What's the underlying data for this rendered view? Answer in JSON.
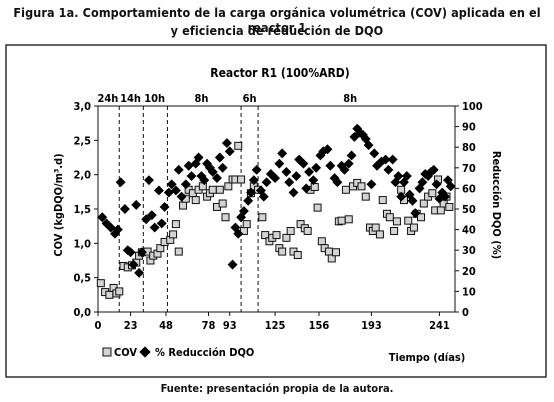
{
  "title": "Figura 1a. Comportamiento de la carga orgánica volumétrica (COV) aplicada en el reactor 1",
  "subtitle": "y eficiencia de reducción de DQO",
  "source": "Fuente: presentación propia de la autora.",
  "chart_data": {
    "type": "scatter",
    "title": "Reactor R1 (100%ARD)",
    "xlabel": "Tiempo (días)",
    "ylabel_left": "COV (kgDQO/m³.d)",
    "ylabel_right": "Reducción DQO (%)",
    "xlim": [
      0,
      252
    ],
    "ylim_left": [
      0,
      3
    ],
    "ylim_right": [
      0,
      100
    ],
    "x_ticks": [
      0,
      23,
      48,
      78,
      93,
      125,
      156,
      193,
      241
    ],
    "x_tick_labels": [
      "0",
      "23",
      "48",
      "78",
      "93",
      "125",
      "156",
      "193",
      "241"
    ],
    "y_left_ticks": [
      0,
      0.5,
      1.0,
      1.5,
      2.0,
      2.5,
      3.0
    ],
    "y_left_tick_labels": [
      "0,0",
      "0,5",
      "1,0",
      "1,5",
      "2,0",
      "2,5",
      "3,0"
    ],
    "y_right_ticks": [
      0,
      10,
      20,
      30,
      40,
      50,
      60,
      70,
      80,
      90,
      100
    ],
    "y_right_tick_labels": [
      "0",
      "10",
      "20",
      "30",
      "40",
      "50",
      "60",
      "70",
      "80",
      "90",
      "100"
    ],
    "grid": false,
    "legend_position": "bottom-left",
    "phase_dividers": [
      15,
      32,
      49,
      101,
      113
    ],
    "phase_labels": [
      {
        "label": "24h",
        "x": 7
      },
      {
        "label": "14h",
        "x": 23
      },
      {
        "label": "10h",
        "x": 40
      },
      {
        "label": "8h",
        "x": 73
      },
      {
        "label": "6h",
        "x": 107
      },
      {
        "label": "8h",
        "x": 178
      }
    ],
    "series": [
      {
        "name": "COV",
        "axis": "left",
        "marker": "square",
        "points": [
          [
            2,
            0.42
          ],
          [
            5,
            0.29
          ],
          [
            8,
            0.25
          ],
          [
            11,
            0.35
          ],
          [
            13,
            0.27
          ],
          [
            15,
            0.3
          ],
          [
            18,
            0.67
          ],
          [
            21,
            0.65
          ],
          [
            24,
            0.68
          ],
          [
            27,
            0.72
          ],
          [
            29,
            0.82
          ],
          [
            31,
            0.87
          ],
          [
            35,
            0.88
          ],
          [
            37,
            0.75
          ],
          [
            39,
            0.82
          ],
          [
            42,
            0.85
          ],
          [
            44,
            0.93
          ],
          [
            47,
            1.02
          ],
          [
            51,
            1.05
          ],
          [
            53,
            1.13
          ],
          [
            55,
            1.28
          ],
          [
            57,
            0.88
          ],
          [
            60,
            1.55
          ],
          [
            62,
            1.65
          ],
          [
            64,
            1.78
          ],
          [
            67,
            1.73
          ],
          [
            69,
            1.63
          ],
          [
            71,
            1.78
          ],
          [
            74,
            1.83
          ],
          [
            77,
            1.68
          ],
          [
            79,
            1.73
          ],
          [
            81,
            1.78
          ],
          [
            84,
            1.53
          ],
          [
            86,
            1.78
          ],
          [
            88,
            1.58
          ],
          [
            90,
            1.38
          ],
          [
            92,
            1.83
          ],
          [
            95,
            1.93
          ],
          [
            97,
            1.93
          ],
          [
            99,
            2.42
          ],
          [
            101,
            1.93
          ],
          [
            103,
            1.18
          ],
          [
            105,
            1.28
          ],
          [
            108,
            1.73
          ],
          [
            110,
            1.83
          ],
          [
            113,
            1.78
          ],
          [
            116,
            1.38
          ],
          [
            118,
            1.12
          ],
          [
            121,
            1.03
          ],
          [
            123,
            1.08
          ],
          [
            126,
            1.12
          ],
          [
            128,
            0.93
          ],
          [
            130,
            0.88
          ],
          [
            133,
            1.08
          ],
          [
            136,
            1.18
          ],
          [
            138,
            0.88
          ],
          [
            141,
            0.83
          ],
          [
            143,
            1.28
          ],
          [
            146,
            1.22
          ],
          [
            148,
            1.18
          ],
          [
            150,
            1.78
          ],
          [
            153,
            1.82
          ],
          [
            155,
            1.52
          ],
          [
            158,
            1.03
          ],
          [
            160,
            0.93
          ],
          [
            163,
            0.88
          ],
          [
            165,
            0.78
          ],
          [
            168,
            0.87
          ],
          [
            170,
            1.32
          ],
          [
            172,
            1.33
          ],
          [
            175,
            1.78
          ],
          [
            177,
            1.35
          ],
          [
            180,
            1.83
          ],
          [
            183,
            1.88
          ],
          [
            186,
            1.83
          ],
          [
            189,
            1.68
          ],
          [
            192,
            1.23
          ],
          [
            194,
            1.18
          ],
          [
            196,
            1.23
          ],
          [
            199,
            1.13
          ],
          [
            201,
            1.63
          ],
          [
            204,
            1.43
          ],
          [
            206,
            1.38
          ],
          [
            209,
            1.18
          ],
          [
            211,
            1.32
          ],
          [
            214,
            1.78
          ],
          [
            216,
            1.63
          ],
          [
            219,
            1.33
          ],
          [
            221,
            1.18
          ],
          [
            223,
            1.23
          ],
          [
            225,
            1.43
          ],
          [
            228,
            1.38
          ],
          [
            230,
            1.58
          ],
          [
            233,
            1.68
          ],
          [
            236,
            1.73
          ],
          [
            238,
            1.48
          ],
          [
            240,
            1.93
          ],
          [
            242,
            1.48
          ],
          [
            244,
            1.58
          ],
          [
            246,
            1.68
          ],
          [
            248,
            1.53
          ]
        ]
      },
      {
        "name": "% Reducción DQO",
        "axis": "right",
        "marker": "diamond",
        "points": [
          [
            3,
            46
          ],
          [
            6,
            43
          ],
          [
            9,
            41
          ],
          [
            12,
            38
          ],
          [
            14,
            40
          ],
          [
            16,
            63
          ],
          [
            19,
            50
          ],
          [
            21,
            30
          ],
          [
            23,
            29
          ],
          [
            25,
            23
          ],
          [
            27,
            52
          ],
          [
            29,
            19
          ],
          [
            31,
            29
          ],
          [
            34,
            45
          ],
          [
            36,
            64
          ],
          [
            38,
            47
          ],
          [
            40,
            41
          ],
          [
            43,
            59
          ],
          [
            45,
            43
          ],
          [
            47,
            51
          ],
          [
            50,
            58
          ],
          [
            52,
            62
          ],
          [
            55,
            59
          ],
          [
            57,
            69
          ],
          [
            59,
            56
          ],
          [
            62,
            62
          ],
          [
            64,
            71
          ],
          [
            66,
            66
          ],
          [
            69,
            72
          ],
          [
            71,
            75
          ],
          [
            73,
            66
          ],
          [
            75,
            64
          ],
          [
            77,
            72
          ],
          [
            79,
            70
          ],
          [
            81,
            68
          ],
          [
            84,
            65
          ],
          [
            86,
            75
          ],
          [
            88,
            70
          ],
          [
            91,
            82
          ],
          [
            93,
            78
          ],
          [
            95,
            23
          ],
          [
            97,
            41
          ],
          [
            99,
            38
          ],
          [
            101,
            46
          ],
          [
            103,
            49
          ],
          [
            106,
            54
          ],
          [
            108,
            58
          ],
          [
            110,
            64
          ],
          [
            112,
            69
          ],
          [
            115,
            59
          ],
          [
            117,
            56
          ],
          [
            119,
            63
          ],
          [
            122,
            67
          ],
          [
            125,
            65
          ],
          [
            128,
            72
          ],
          [
            130,
            77
          ],
          [
            133,
            68
          ],
          [
            135,
            63
          ],
          [
            138,
            58
          ],
          [
            140,
            66
          ],
          [
            142,
            74
          ],
          [
            145,
            72
          ],
          [
            147,
            60
          ],
          [
            149,
            68
          ],
          [
            152,
            64
          ],
          [
            154,
            70
          ],
          [
            157,
            76
          ],
          [
            159,
            78
          ],
          [
            162,
            79
          ],
          [
            164,
            71
          ],
          [
            167,
            65
          ],
          [
            169,
            63
          ],
          [
            172,
            71
          ],
          [
            174,
            69
          ],
          [
            177,
            72
          ],
          [
            179,
            76
          ],
          [
            181,
            85
          ],
          [
            183,
            89
          ],
          [
            185,
            87
          ],
          [
            187,
            86
          ],
          [
            189,
            84
          ],
          [
            191,
            81
          ],
          [
            193,
            62
          ],
          [
            195,
            77
          ],
          [
            197,
            71
          ],
          [
            200,
            73
          ],
          [
            203,
            74
          ],
          [
            205,
            69
          ],
          [
            208,
            74
          ],
          [
            210,
            63
          ],
          [
            212,
            66
          ],
          [
            214,
            56
          ],
          [
            216,
            63
          ],
          [
            218,
            66
          ],
          [
            220,
            57
          ],
          [
            222,
            54
          ],
          [
            224,
            48
          ],
          [
            227,
            60
          ],
          [
            229,
            63
          ],
          [
            231,
            67
          ],
          [
            233,
            66
          ],
          [
            235,
            68
          ],
          [
            237,
            69
          ],
          [
            239,
            62
          ],
          [
            241,
            55
          ],
          [
            243,
            58
          ],
          [
            245,
            56
          ],
          [
            247,
            64
          ],
          [
            249,
            61
          ]
        ]
      }
    ]
  }
}
